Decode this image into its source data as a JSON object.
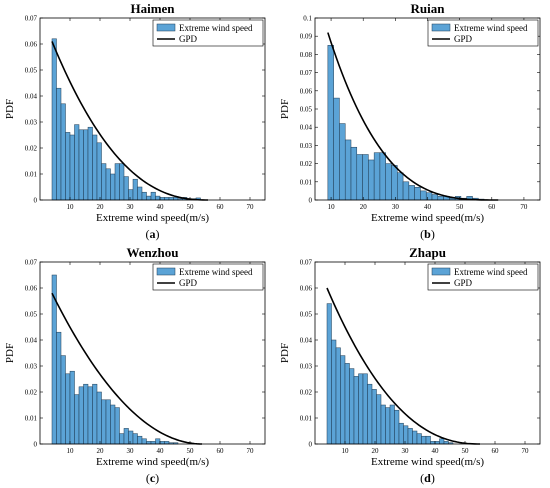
{
  "colors": {
    "bar_fill": "#5ba3d6",
    "bar_edge": "#1f3a52",
    "curve": "#000000",
    "axis": "#000000"
  },
  "chart_data": [
    {
      "type": "bar",
      "title": "Haimen",
      "panel_label": "a",
      "xlabel": "Extreme wind speed(m/s)",
      "ylabel": "PDF",
      "xlim": [
        0,
        75
      ],
      "ylim": [
        0,
        0.07
      ],
      "xticks": [
        10,
        20,
        30,
        40,
        50,
        60,
        70
      ],
      "yticks": [
        0,
        0.01,
        0.02,
        0.03,
        0.04,
        0.05,
        0.06,
        0.07
      ],
      "ytick_labels": [
        "0",
        "0.01",
        "0.02",
        "0.03",
        "0.04",
        "0.05",
        "0.06",
        "0.07"
      ],
      "bin_start": 4,
      "bin_width": 1.5,
      "values": [
        0.062,
        0.043,
        0.037,
        0.026,
        0.025,
        0.029,
        0.027,
        0.027,
        0.028,
        0.025,
        0.022,
        0.014,
        0.012,
        0.01,
        0.014,
        0.014,
        0.009,
        0.004,
        0.008,
        0.005,
        0.003,
        0.0015,
        0.003,
        0.0015,
        0.001,
        0.001,
        0.001,
        0.001,
        0.0005,
        0.001,
        0.0005,
        0.0005,
        0.0008
      ],
      "series": [
        {
          "name": "Extreme wind speed"
        },
        {
          "name": "GPD"
        }
      ],
      "gpd_curve": {
        "x_start": 4,
        "x_end": 56,
        "y_start": 0.061,
        "power": 2.4
      }
    },
    {
      "type": "bar",
      "title": "Ruian",
      "panel_label": "b",
      "xlabel": "Extreme wind speed(m/s)",
      "ylabel": "PDF",
      "xlim": [
        5,
        75
      ],
      "ylim": [
        0,
        0.1
      ],
      "xticks": [
        10,
        20,
        30,
        40,
        50,
        60,
        70
      ],
      "yticks": [
        0,
        0.01,
        0.02,
        0.03,
        0.04,
        0.05,
        0.06,
        0.07,
        0.08,
        0.09,
        0.1
      ],
      "ytick_labels": [
        "0",
        "0.01",
        "0.02",
        "0.03",
        "0.04",
        "0.05",
        "0.06",
        "0.07",
        "0.08",
        "0.09",
        "0.1"
      ],
      "bin_start": 9,
      "bin_width": 1.8,
      "values": [
        0.085,
        0.056,
        0.042,
        0.033,
        0.029,
        0.025,
        0.025,
        0.022,
        0.026,
        0.026,
        0.02,
        0.019,
        0.015,
        0.01,
        0.008,
        0.007,
        0.005,
        0.004,
        0.003,
        0.002,
        0.002,
        0.001,
        0.002,
        0.001,
        0.002,
        0.001,
        0.0005
      ],
      "series": [
        {
          "name": "Extreme wind speed"
        },
        {
          "name": "GPD"
        }
      ],
      "gpd_curve": {
        "x_start": 9,
        "x_end": 62,
        "y_start": 0.092,
        "power": 3.2
      }
    },
    {
      "type": "bar",
      "title": "Wenzhou",
      "panel_label": "c",
      "xlabel": "Extreme wind speed(m/s)",
      "ylabel": "PDF",
      "xlim": [
        0,
        75
      ],
      "ylim": [
        0,
        0.07
      ],
      "xticks": [
        10,
        20,
        30,
        40,
        50,
        60,
        70
      ],
      "yticks": [
        0,
        0.01,
        0.02,
        0.03,
        0.04,
        0.05,
        0.06,
        0.07
      ],
      "ytick_labels": [
        "0",
        "0.01",
        "0.02",
        "0.03",
        "0.04",
        "0.05",
        "0.06",
        "0.07"
      ],
      "bin_start": 4,
      "bin_width": 1.5,
      "values": [
        0.065,
        0.043,
        0.034,
        0.027,
        0.028,
        0.019,
        0.022,
        0.023,
        0.022,
        0.023,
        0.02,
        0.017,
        0.017,
        0.015,
        0.014,
        0.004,
        0.006,
        0.005,
        0.004,
        0.003,
        0.002,
        0.001,
        0.001,
        0.002,
        0.001,
        0.001,
        0.0005,
        0.0005
      ],
      "series": [
        {
          "name": "Extreme wind speed"
        },
        {
          "name": "GPD"
        }
      ],
      "gpd_curve": {
        "x_start": 4,
        "x_end": 54,
        "y_start": 0.058,
        "power": 2.0
      }
    },
    {
      "type": "bar",
      "title": "Zhapu",
      "panel_label": "d",
      "xlabel": "Extreme wind speed(m/s)",
      "ylabel": "PDF",
      "xlim": [
        0,
        75
      ],
      "ylim": [
        0,
        0.07
      ],
      "xticks": [
        10,
        20,
        30,
        40,
        50,
        60,
        70
      ],
      "yticks": [
        0,
        0.01,
        0.02,
        0.03,
        0.04,
        0.05,
        0.06,
        0.07
      ],
      "ytick_labels": [
        "0",
        "0.01",
        "0.02",
        "0.03",
        "0.04",
        "0.05",
        "0.06",
        "0.07"
      ],
      "bin_start": 4,
      "bin_width": 1.5,
      "values": [
        0.054,
        0.04,
        0.037,
        0.034,
        0.031,
        0.029,
        0.026,
        0.027,
        0.027,
        0.023,
        0.021,
        0.019,
        0.015,
        0.014,
        0.015,
        0.013,
        0.008,
        0.007,
        0.006,
        0.005,
        0.004,
        0.003,
        0.003,
        0.001,
        0.001,
        0.002,
        0.001,
        0.0005
      ],
      "series": [
        {
          "name": "Extreme wind speed"
        },
        {
          "name": "GPD"
        }
      ],
      "gpd_curve": {
        "x_start": 4,
        "x_end": 55,
        "y_start": 0.06,
        "power": 2.3
      }
    }
  ]
}
